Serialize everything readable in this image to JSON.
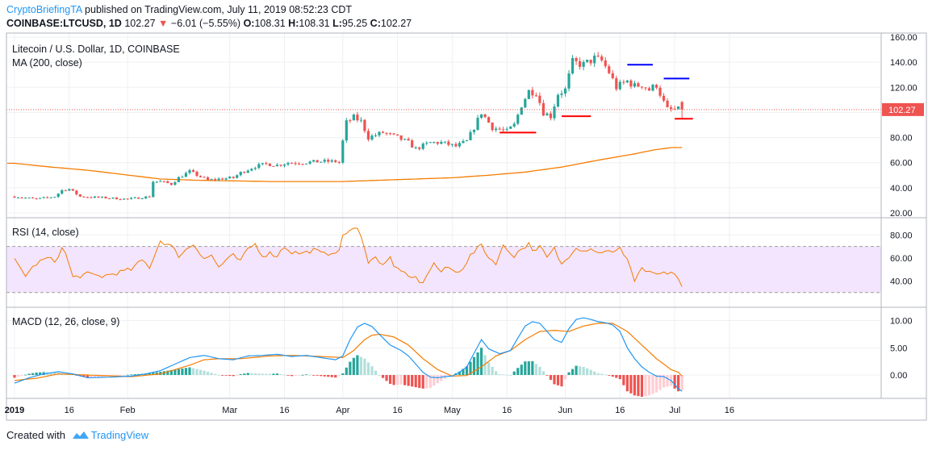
{
  "header": {
    "author": "CryptoBriefingTA",
    "published": "published on TradingView.com, July 11, 2019 08:52:23 CDT",
    "symbol": "COINBASE:LTCUSD, 1D",
    "price": "102.27",
    "down_arrow": "▼",
    "change": "−6.01 (−5.55%)",
    "o_label": "O:",
    "o_value": "108.31",
    "h_label": "H:",
    "h_value": "108.31",
    "l_label": "L:",
    "l_value": "95.25",
    "c_label": "C:",
    "c_value": "102.27"
  },
  "footer": {
    "created_with": "Created with",
    "brand": "TradingView"
  },
  "colors": {
    "up": "#26a69a",
    "down": "#ef5350",
    "ma": "#f57c00",
    "rsi": "#f57c00",
    "rsi_band": "#f3e5fd",
    "macd": "#2196f3",
    "signal": "#f57c00",
    "hist_up_strong": "#26a69a",
    "hist_up_weak": "#b2dfdb",
    "hist_down_strong": "#ef5350",
    "hist_down_weak": "#ffcdd2",
    "resistance": "#0000ff",
    "support": "#ff0000",
    "price_tag": "#ef5350",
    "grid": "#eef0f3",
    "axis_text": "#131722"
  },
  "chart_data": [
    {
      "type": "candlestick",
      "title": "Litecoin / U.S. Dollar, 1D, COINBASE",
      "indicator_label": "MA (200, close)",
      "last_price_label": "102.27",
      "ylim": [
        20,
        160
      ],
      "yticks": [
        "160.00",
        "140.00",
        "120.00",
        "100.00",
        "80.00",
        "60.00",
        "40.00",
        "20.00"
      ],
      "ytick_values": [
        160,
        140,
        120,
        100,
        80,
        60,
        40,
        20
      ],
      "xticks": [
        "2019",
        "16",
        "Feb",
        "Mar",
        "16",
        "Apr",
        "16",
        "May",
        "16",
        "Jun",
        "16",
        "Jul",
        "16"
      ],
      "xtick_days": [
        0,
        15,
        31,
        59,
        74,
        90,
        105,
        120,
        135,
        151,
        166,
        181,
        196
      ],
      "close_anchors": [
        [
          0,
          33
        ],
        [
          6,
          31
        ],
        [
          11,
          33
        ],
        [
          13,
          38
        ],
        [
          15,
          39
        ],
        [
          18,
          33
        ],
        [
          25,
          32
        ],
        [
          31,
          31
        ],
        [
          37,
          33
        ],
        [
          38,
          45
        ],
        [
          40,
          45
        ],
        [
          43,
          43
        ],
        [
          45,
          48
        ],
        [
          48,
          53
        ],
        [
          53,
          46
        ],
        [
          56,
          47
        ],
        [
          60,
          48
        ],
        [
          62,
          52
        ],
        [
          66,
          57
        ],
        [
          69,
          59
        ],
        [
          72,
          58
        ],
        [
          75,
          60
        ],
        [
          79,
          60
        ],
        [
          84,
          61
        ],
        [
          88,
          61
        ],
        [
          89,
          60
        ],
        [
          90,
          77
        ],
        [
          91,
          92
        ],
        [
          93,
          96
        ],
        [
          95,
          93
        ],
        [
          97,
          80
        ],
        [
          101,
          84
        ],
        [
          105,
          80
        ],
        [
          108,
          76
        ],
        [
          110,
          71
        ],
        [
          114,
          76
        ],
        [
          117,
          76
        ],
        [
          121,
          73
        ],
        [
          124,
          77
        ],
        [
          126,
          88
        ],
        [
          128,
          100
        ],
        [
          131,
          88
        ],
        [
          135,
          85
        ],
        [
          137,
          90
        ],
        [
          139,
          106
        ],
        [
          141,
          117
        ],
        [
          143,
          116
        ],
        [
          145,
          100
        ],
        [
          147,
          97
        ],
        [
          149,
          115
        ],
        [
          151,
          118
        ],
        [
          153,
          140
        ],
        [
          156,
          138
        ],
        [
          159,
          143
        ],
        [
          161,
          141
        ],
        [
          163,
          132
        ],
        [
          165,
          120
        ],
        [
          168,
          125
        ],
        [
          170,
          121
        ],
        [
          172,
          122
        ],
        [
          174,
          118
        ],
        [
          176,
          122
        ],
        [
          178,
          108
        ],
        [
          179,
          102.27
        ]
      ],
      "ma200_anchors": [
        [
          0,
          59.5
        ],
        [
          10,
          56.5
        ],
        [
          20,
          54
        ],
        [
          30,
          50.5
        ],
        [
          40,
          47
        ],
        [
          50,
          46
        ],
        [
          60,
          45.5
        ],
        [
          70,
          45
        ],
        [
          80,
          45
        ],
        [
          90,
          45
        ],
        [
          100,
          46
        ],
        [
          110,
          47
        ],
        [
          120,
          48
        ],
        [
          130,
          50
        ],
        [
          140,
          52.5
        ],
        [
          150,
          56.5
        ],
        [
          160,
          62
        ],
        [
          170,
          67
        ],
        [
          175,
          70
        ],
        [
          180,
          72
        ]
      ],
      "resistance_lines": [
        {
          "label": "",
          "from_day": 168,
          "to_day": 175,
          "value": 138
        },
        {
          "label": "",
          "from_day": 178,
          "to_day": 185,
          "value": 127
        }
      ],
      "support_lines": [
        {
          "label": "",
          "from_day": 133,
          "to_day": 143,
          "value": 84
        },
        {
          "label": "",
          "from_day": 150,
          "to_day": 158,
          "value": 97
        },
        {
          "label": "",
          "from_day": 181,
          "to_day": 186,
          "value": 95
        }
      ]
    },
    {
      "type": "line",
      "title": "RSI (14, close)",
      "ylim": [
        20,
        90
      ],
      "yticks": [
        "80.00",
        "60.00",
        "40.00"
      ],
      "ytick_values": [
        80,
        60,
        40
      ],
      "band": [
        30,
        70
      ],
      "anchors": [
        [
          0,
          58
        ],
        [
          3,
          45
        ],
        [
          6,
          55
        ],
        [
          9,
          60
        ],
        [
          11,
          57
        ],
        [
          13,
          68
        ],
        [
          14,
          64
        ],
        [
          16,
          43
        ],
        [
          20,
          46
        ],
        [
          24,
          44
        ],
        [
          28,
          47
        ],
        [
          32,
          50
        ],
        [
          35,
          58
        ],
        [
          37,
          52
        ],
        [
          40,
          75
        ],
        [
          43,
          70
        ],
        [
          45,
          62
        ],
        [
          47,
          67
        ],
        [
          49,
          72
        ],
        [
          52,
          60
        ],
        [
          54,
          62
        ],
        [
          56,
          52
        ],
        [
          58,
          58
        ],
        [
          60,
          62
        ],
        [
          62,
          57
        ],
        [
          64,
          68
        ],
        [
          66,
          72
        ],
        [
          68,
          62
        ],
        [
          70,
          64
        ],
        [
          72,
          62
        ],
        [
          74,
          70
        ],
        [
          76,
          65
        ],
        [
          79,
          64
        ],
        [
          82,
          67
        ],
        [
          85,
          63
        ],
        [
          88,
          66
        ],
        [
          89,
          65
        ],
        [
          90,
          80
        ],
        [
          92,
          84
        ],
        [
          94,
          85
        ],
        [
          96,
          70
        ],
        [
          97,
          57
        ],
        [
          99,
          60
        ],
        [
          101,
          55
        ],
        [
          103,
          60
        ],
        [
          104,
          52
        ],
        [
          106,
          50
        ],
        [
          108,
          42
        ],
        [
          110,
          43
        ],
        [
          112,
          37
        ],
        [
          113,
          46
        ],
        [
          115,
          55
        ],
        [
          117,
          48
        ],
        [
          119,
          52
        ],
        [
          121,
          47
        ],
        [
          123,
          52
        ],
        [
          125,
          62
        ],
        [
          127,
          68
        ],
        [
          128,
          72
        ],
        [
          130,
          60
        ],
        [
          132,
          56
        ],
        [
          134,
          70
        ],
        [
          137,
          62
        ],
        [
          139,
          68
        ],
        [
          141,
          72
        ],
        [
          143,
          65
        ],
        [
          144,
          70
        ],
        [
          146,
          60
        ],
        [
          148,
          68
        ],
        [
          150,
          54
        ],
        [
          152,
          62
        ],
        [
          154,
          70
        ],
        [
          156,
          66
        ],
        [
          158,
          69
        ],
        [
          160,
          64
        ],
        [
          162,
          67
        ],
        [
          164,
          64
        ],
        [
          166,
          68
        ],
        [
          168,
          60
        ],
        [
          170,
          40
        ],
        [
          172,
          52
        ],
        [
          173,
          48
        ],
        [
          175,
          46
        ],
        [
          177,
          47
        ],
        [
          179,
          45
        ],
        [
          181,
          47
        ],
        [
          182,
          40
        ],
        [
          183,
          35
        ]
      ]
    },
    {
      "type": "line",
      "title": "MACD (12, 26, close, 9)",
      "ylim": [
        -4,
        12
      ],
      "yticks": [
        "10.00",
        "5.00",
        "0.00"
      ],
      "ytick_values": [
        10,
        5,
        0
      ],
      "macd_anchors": [
        [
          0,
          -1.5
        ],
        [
          4,
          -0.5
        ],
        [
          8,
          0.2
        ],
        [
          12,
          0.6
        ],
        [
          16,
          0.2
        ],
        [
          20,
          -0.5
        ],
        [
          26,
          -0.4
        ],
        [
          32,
          -0.2
        ],
        [
          36,
          0.2
        ],
        [
          40,
          0.8
        ],
        [
          44,
          2
        ],
        [
          48,
          3.2
        ],
        [
          52,
          3.6
        ],
        [
          56,
          3
        ],
        [
          60,
          2.8
        ],
        [
          64,
          3.5
        ],
        [
          68,
          3.6
        ],
        [
          72,
          3.8
        ],
        [
          76,
          3.4
        ],
        [
          80,
          3.6
        ],
        [
          84,
          3.2
        ],
        [
          88,
          2.8
        ],
        [
          90,
          3.5
        ],
        [
          92,
          6.5
        ],
        [
          94,
          8.8
        ],
        [
          96,
          9.5
        ],
        [
          98,
          8.9
        ],
        [
          100,
          7.5
        ],
        [
          103,
          5.5
        ],
        [
          106,
          4.5
        ],
        [
          108,
          3.5
        ],
        [
          110,
          2
        ],
        [
          112,
          0.5
        ],
        [
          114,
          -0.4
        ],
        [
          116,
          -0.5
        ],
        [
          118,
          -0.3
        ],
        [
          120,
          -0.2
        ],
        [
          122,
          0.5
        ],
        [
          124,
          1.5
        ],
        [
          126,
          4
        ],
        [
          128,
          6.5
        ],
        [
          130,
          4.8
        ],
        [
          133,
          3.9
        ],
        [
          136,
          4.5
        ],
        [
          138,
          6.8
        ],
        [
          140,
          9
        ],
        [
          142,
          9.8
        ],
        [
          144,
          9.5
        ],
        [
          146,
          8
        ],
        [
          148,
          6.5
        ],
        [
          150,
          6
        ],
        [
          152,
          8.5
        ],
        [
          154,
          10.2
        ],
        [
          156,
          10.5
        ],
        [
          158,
          10.2
        ],
        [
          160,
          9.8
        ],
        [
          162,
          9.6
        ],
        [
          164,
          9.2
        ],
        [
          166,
          8
        ],
        [
          168,
          5
        ],
        [
          170,
          3
        ],
        [
          172,
          1.5
        ],
        [
          174,
          0.5
        ],
        [
          176,
          -0.2
        ],
        [
          178,
          -0.3
        ],
        [
          180,
          -1
        ],
        [
          182,
          -2.5
        ],
        [
          183,
          -3
        ]
      ],
      "signal_anchors": [
        [
          0,
          -1
        ],
        [
          6,
          -0.6
        ],
        [
          12,
          0.2
        ],
        [
          20,
          0
        ],
        [
          32,
          -0.3
        ],
        [
          40,
          0.2
        ],
        [
          48,
          1.8
        ],
        [
          52,
          2.8
        ],
        [
          56,
          3
        ],
        [
          62,
          3
        ],
        [
          70,
          3.5
        ],
        [
          76,
          3.6
        ],
        [
          84,
          3.4
        ],
        [
          90,
          3.2
        ],
        [
          93,
          4.5
        ],
        [
          96,
          6.5
        ],
        [
          98,
          7.3
        ],
        [
          100,
          7.5
        ],
        [
          104,
          7
        ],
        [
          108,
          5.5
        ],
        [
          112,
          3
        ],
        [
          116,
          1
        ],
        [
          120,
          -0.2
        ],
        [
          124,
          -0.1
        ],
        [
          128,
          1.5
        ],
        [
          132,
          3.5
        ],
        [
          136,
          4.5
        ],
        [
          140,
          6.5
        ],
        [
          144,
          8
        ],
        [
          148,
          8.2
        ],
        [
          152,
          8
        ],
        [
          156,
          9
        ],
        [
          160,
          9.5
        ],
        [
          164,
          9.5
        ],
        [
          168,
          8
        ],
        [
          172,
          5.5
        ],
        [
          176,
          3
        ],
        [
          180,
          1
        ],
        [
          182,
          0.5
        ],
        [
          183,
          -0.2
        ]
      ]
    }
  ]
}
